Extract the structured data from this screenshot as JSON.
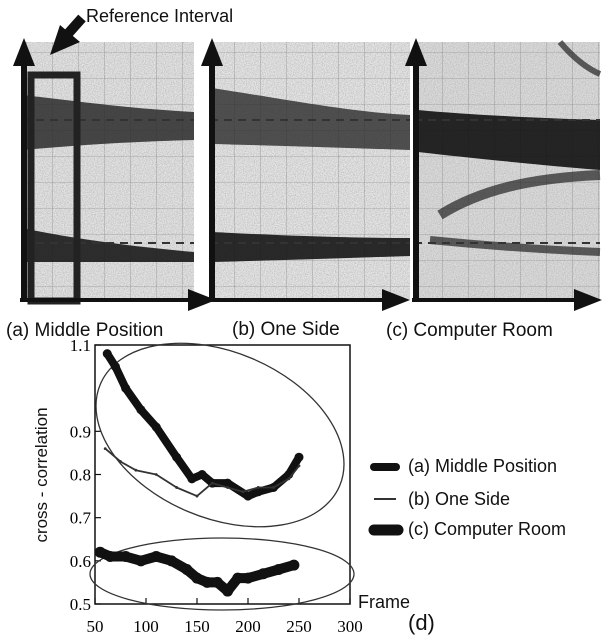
{
  "annotation": {
    "reference_interval": "Reference Interval"
  },
  "panels": [
    {
      "caption": "(a) Middle Position"
    },
    {
      "caption": "(b) One Side"
    },
    {
      "caption": "(c) Computer Room"
    }
  ],
  "chart_data": {
    "type": "line",
    "panel_label": "(d)",
    "xlabel": "Frame",
    "ylabel": "cross - correlation",
    "xlim": [
      50,
      300
    ],
    "ylim": [
      0.5,
      1.1
    ],
    "x_ticks": [
      "50",
      "100",
      "150",
      "200",
      "250",
      "300"
    ],
    "y_ticks": [
      "0.5",
      "0.6",
      "0.7",
      "0.8",
      "0.9",
      "1.1"
    ],
    "series": [
      {
        "name": "(a) Middle Position",
        "color": "#111111",
        "x": [
          62,
          70,
          80,
          95,
          110,
          130,
          145,
          155,
          165,
          180,
          200,
          210,
          225,
          240,
          250
        ],
        "y": [
          1.08,
          1.05,
          1.0,
          0.95,
          0.91,
          0.84,
          0.79,
          0.8,
          0.78,
          0.78,
          0.75,
          0.76,
          0.77,
          0.8,
          0.84
        ]
      },
      {
        "name": "(b) One Side",
        "color": "#333333",
        "x": [
          60,
          75,
          90,
          110,
          130,
          150,
          165,
          180,
          195,
          210,
          225,
          240,
          250
        ],
        "y": [
          0.86,
          0.83,
          0.81,
          0.8,
          0.77,
          0.75,
          0.78,
          0.77,
          0.76,
          0.77,
          0.77,
          0.79,
          0.82
        ]
      },
      {
        "name": "(c) Computer Room",
        "color": "#111111",
        "x": [
          55,
          65,
          80,
          95,
          110,
          125,
          140,
          150,
          160,
          170,
          180,
          190,
          200,
          215,
          230,
          245
        ],
        "y": [
          0.62,
          0.61,
          0.61,
          0.6,
          0.61,
          0.6,
          0.58,
          0.56,
          0.55,
          0.55,
          0.53,
          0.56,
          0.56,
          0.57,
          0.58,
          0.59
        ]
      }
    ]
  }
}
